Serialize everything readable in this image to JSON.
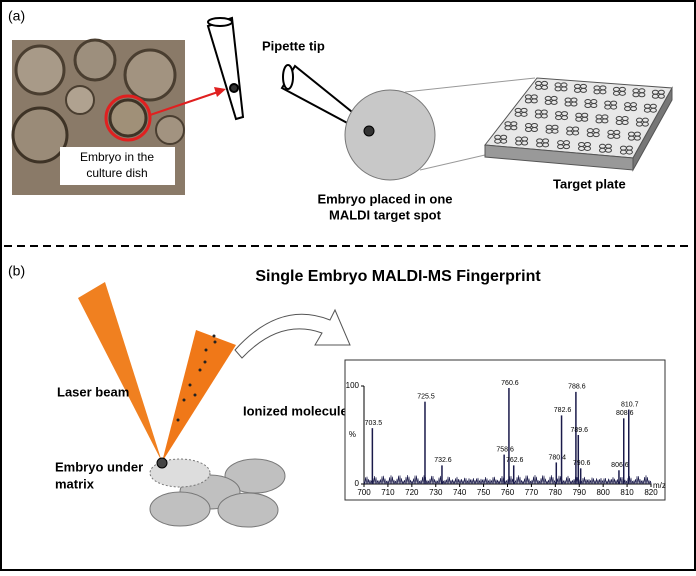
{
  "panel_a": {
    "label": "(a)",
    "photo_label": [
      "Embryo in the",
      "culture dish"
    ],
    "pipette_label": "Pipette tip",
    "spot_label": [
      "Embryo placed in one",
      "MALDI target spot"
    ],
    "plate_label": "Target plate"
  },
  "panel_b": {
    "label": "(b)",
    "title": "Single Embryo MALDI-MS Fingerprint",
    "laser_label": "Laser beam",
    "ions_label": "Ionized molecules",
    "embryo_label": [
      "Embryo under",
      "matrix"
    ],
    "spectrum": {
      "type": "bar",
      "x": [
        703.5,
        725.5,
        732.6,
        758.6,
        760.6,
        762.6,
        780.4,
        782.6,
        788.6,
        789.6,
        790.6,
        806.6,
        808.6,
        810.7
      ],
      "values": [
        57,
        84,
        19,
        30,
        98,
        19,
        22,
        70,
        94,
        50,
        16,
        14,
        67,
        76
      ],
      "xlim": [
        700,
        820
      ],
      "ylim": [
        0,
        100
      ],
      "xticks": [
        700,
        710,
        720,
        730,
        740,
        750,
        760,
        770,
        780,
        790,
        800,
        810,
        820
      ],
      "yticks": [
        0,
        100
      ],
      "xlabel": "m/z",
      "ylabel": "%",
      "color": "#1a1a4a"
    }
  }
}
